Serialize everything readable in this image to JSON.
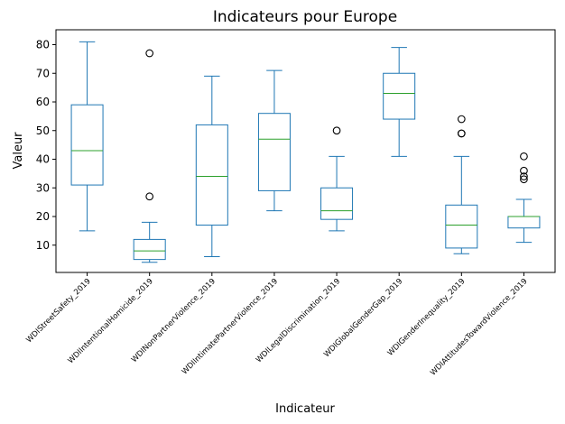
{
  "chart_data": {
    "type": "box",
    "title": "Indicateurs pour Europe",
    "xlabel": "Indicateur",
    "ylabel": "Valeur",
    "ylim": [
      0,
      85
    ],
    "yticks": [
      10,
      20,
      30,
      40,
      50,
      60,
      70,
      80
    ],
    "grid": false,
    "colors": {
      "box": "#1f77b4",
      "median": "#2ca02c",
      "outlier": "#000000"
    },
    "categories": [
      "WDIStreetSafety_2019",
      "WDIIntentionalHomicide_2019",
      "WDINonPartnerViolence_2019",
      "WDIIntimatePartnerViolence_2019",
      "WDILegalDiscrimination_2019",
      "WDIGlobalGenderGap_2019",
      "WDIGenderInequality_2019",
      "WDIAttitudesTowardViolence_2019"
    ],
    "boxes": [
      {
        "whisker_low": 15,
        "q1": 31,
        "median": 43,
        "q3": 59,
        "whisker_high": 81,
        "outliers": []
      },
      {
        "whisker_low": 4,
        "q1": 5,
        "median": 8,
        "q3": 12,
        "whisker_high": 18,
        "outliers": [
          27,
          77
        ]
      },
      {
        "whisker_low": 6,
        "q1": 17,
        "median": 34,
        "q3": 52,
        "whisker_high": 69,
        "outliers": []
      },
      {
        "whisker_low": 22,
        "q1": 29,
        "median": 47,
        "q3": 56,
        "whisker_high": 71,
        "outliers": []
      },
      {
        "whisker_low": 15,
        "q1": 19,
        "median": 22,
        "q3": 30,
        "whisker_high": 41,
        "outliers": [
          50
        ]
      },
      {
        "whisker_low": 41,
        "q1": 54,
        "median": 63,
        "q3": 70,
        "whisker_high": 79,
        "outliers": []
      },
      {
        "whisker_low": 7,
        "q1": 9,
        "median": 17,
        "q3": 24,
        "whisker_high": 41,
        "outliers": [
          49,
          49,
          54
        ]
      },
      {
        "whisker_low": 11,
        "q1": 16,
        "median": 20,
        "q3": 20,
        "whisker_high": 26,
        "outliers": [
          33,
          34,
          36,
          41
        ]
      }
    ]
  }
}
